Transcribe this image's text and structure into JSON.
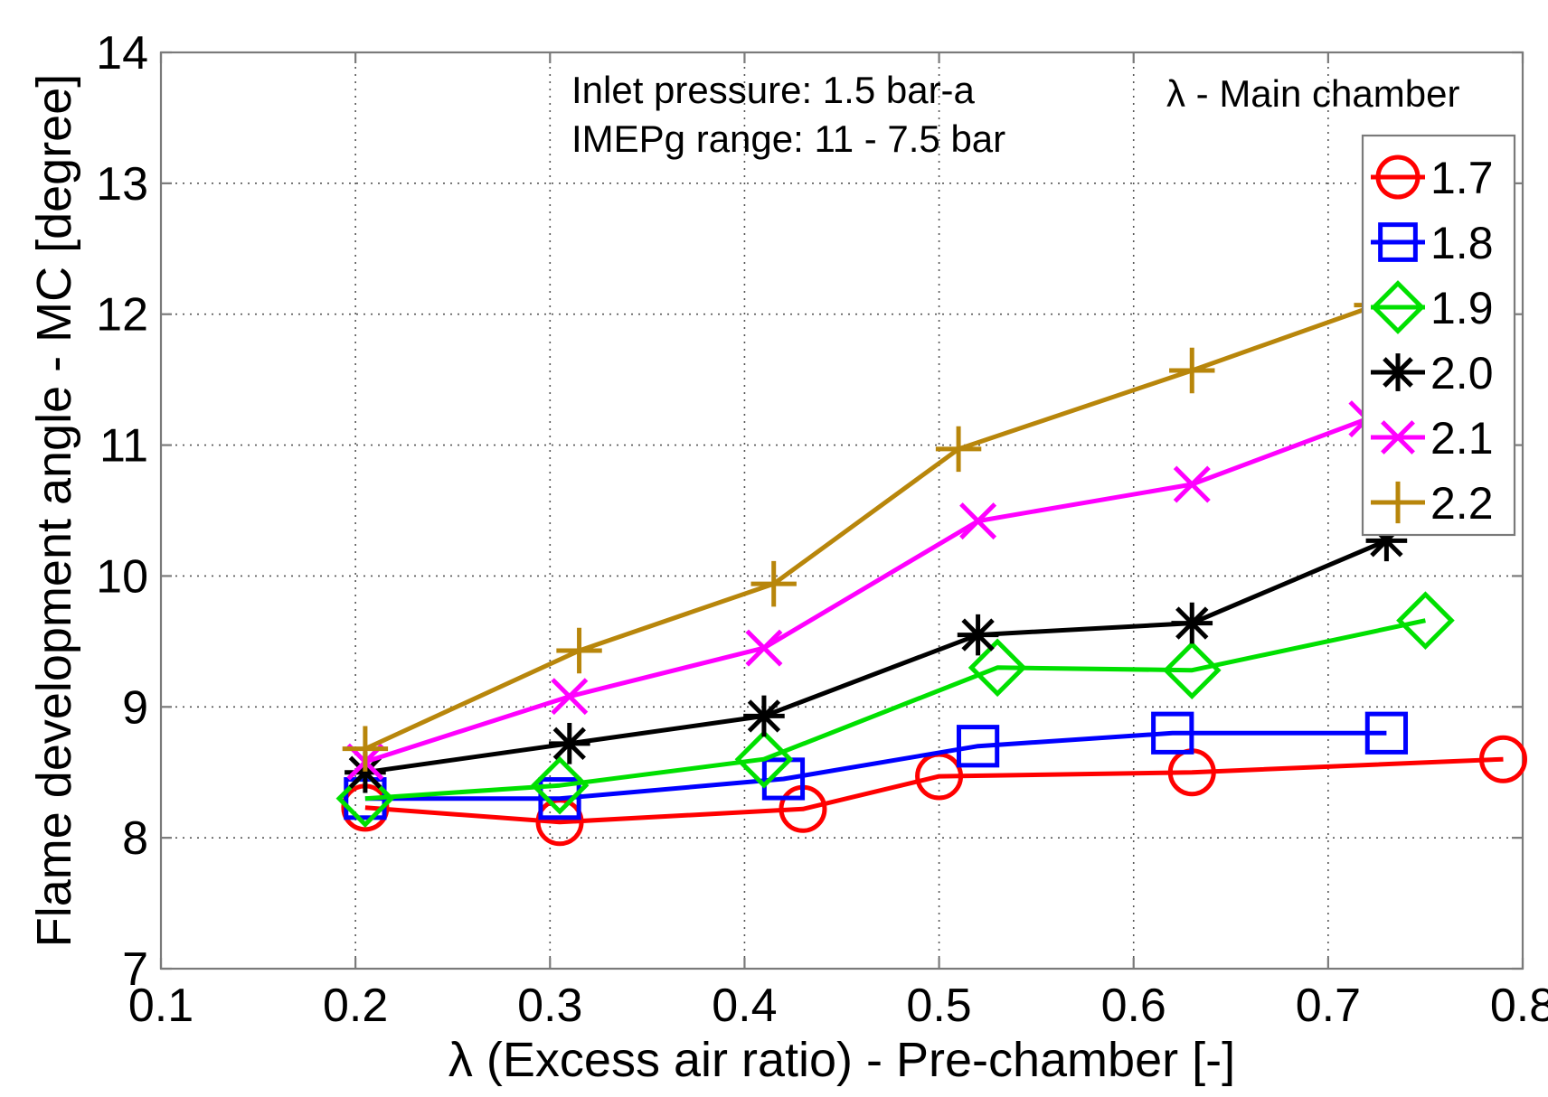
{
  "chart_data": {
    "type": "line",
    "title": "",
    "xlabel": "λ (Excess air ratio) - Pre-chamber [-]",
    "ylabel": "Flame development angle - MC [degree]",
    "xlim": [
      0.1,
      0.8
    ],
    "ylim": [
      7,
      14
    ],
    "xticks": [
      0.1,
      0.2,
      0.3,
      0.4,
      0.5,
      0.6,
      0.7,
      0.8
    ],
    "yticks": [
      7,
      8,
      9,
      10,
      11,
      12,
      13,
      14
    ],
    "xtick_labels": [
      "0.1",
      "0.2",
      "0.3",
      "0.4",
      "0.5",
      "0.6",
      "0.7",
      "0.8"
    ],
    "ytick_labels": [
      "7",
      "8",
      "9",
      "10",
      "11",
      "12",
      "13",
      "14"
    ],
    "grid": true,
    "annotations": [
      "Inlet pressure: 1.5 bar-a",
      "IMEPg range: 11 - 7.5 bar"
    ],
    "legend_title": "λ - Main chamber",
    "legend_position": "top-right",
    "series": [
      {
        "name": "1.7",
        "color": "#ff0000",
        "marker": "circle",
        "points": [
          [
            0.205,
            8.23
          ],
          [
            0.305,
            8.12
          ],
          [
            0.43,
            8.22
          ],
          [
            0.5,
            8.47
          ],
          [
            0.63,
            8.5
          ],
          [
            0.79,
            8.6
          ]
        ]
      },
      {
        "name": "1.8",
        "color": "#0000ff",
        "marker": "square",
        "points": [
          [
            0.205,
            8.3
          ],
          [
            0.305,
            8.3
          ],
          [
            0.42,
            8.45
          ],
          [
            0.52,
            8.7
          ],
          [
            0.62,
            8.8
          ],
          [
            0.73,
            8.8
          ]
        ]
      },
      {
        "name": "1.9",
        "color": "#00e000",
        "marker": "diamond",
        "points": [
          [
            0.205,
            8.3
          ],
          [
            0.305,
            8.4
          ],
          [
            0.41,
            8.6
          ],
          [
            0.53,
            9.3
          ],
          [
            0.63,
            9.28
          ],
          [
            0.75,
            9.66
          ]
        ]
      },
      {
        "name": "2.0",
        "color": "#000000",
        "marker": "star",
        "points": [
          [
            0.205,
            8.5
          ],
          [
            0.31,
            8.72
          ],
          [
            0.41,
            8.93
          ],
          [
            0.52,
            9.55
          ],
          [
            0.63,
            9.64
          ],
          [
            0.73,
            10.27
          ]
        ]
      },
      {
        "name": "2.1",
        "color": "#ff00ff",
        "marker": "x",
        "points": [
          [
            0.205,
            8.58
          ],
          [
            0.31,
            9.08
          ],
          [
            0.41,
            9.45
          ],
          [
            0.52,
            10.42
          ],
          [
            0.63,
            10.7
          ],
          [
            0.72,
            11.2
          ]
        ]
      },
      {
        "name": "2.2",
        "color": "#b8860b",
        "marker": "plus",
        "points": [
          [
            0.205,
            8.68
          ],
          [
            0.315,
            9.43
          ],
          [
            0.415,
            9.94
          ],
          [
            0.51,
            10.97
          ],
          [
            0.63,
            11.57
          ],
          [
            0.725,
            12.07
          ]
        ]
      }
    ]
  }
}
